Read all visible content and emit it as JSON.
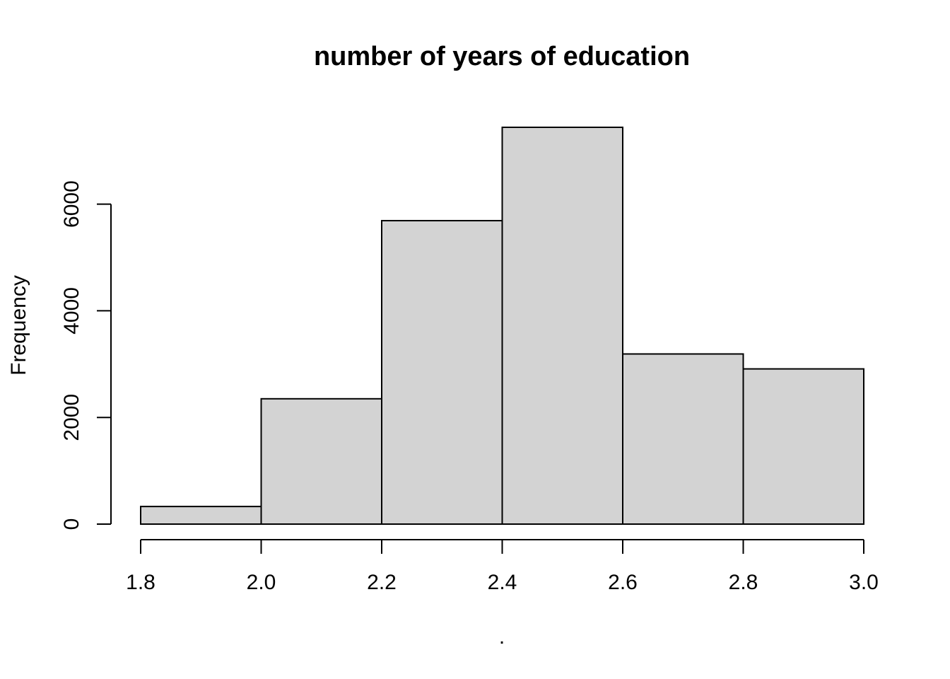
{
  "chart_data": {
    "type": "bar",
    "histogram": true,
    "title": "number of years of education",
    "xlabel": ".",
    "ylabel": "Frequency",
    "bins": [
      {
        "start": 1.8,
        "end": 2.0,
        "count": 330
      },
      {
        "start": 2.0,
        "end": 2.2,
        "count": 2350
      },
      {
        "start": 2.2,
        "end": 2.4,
        "count": 5690
      },
      {
        "start": 2.4,
        "end": 2.6,
        "count": 7440
      },
      {
        "start": 2.6,
        "end": 2.8,
        "count": 3190
      },
      {
        "start": 2.8,
        "end": 3.0,
        "count": 2910
      }
    ],
    "xlim": [
      1.8,
      3.0
    ],
    "ylim": [
      0,
      7440
    ],
    "xticks": [
      1.8,
      2.0,
      2.2,
      2.4,
      2.6,
      2.8,
      3.0
    ],
    "xtick_labels": [
      "1.8",
      "2.0",
      "2.2",
      "2.4",
      "2.6",
      "2.8",
      "3.0"
    ],
    "yticks": [
      0,
      2000,
      4000,
      6000
    ],
    "ytick_labels": [
      "0",
      "2000",
      "4000",
      "6000"
    ],
    "grid": false,
    "legend": "none",
    "bar_color": "#d3d3d3",
    "edge_color": "#000000"
  }
}
